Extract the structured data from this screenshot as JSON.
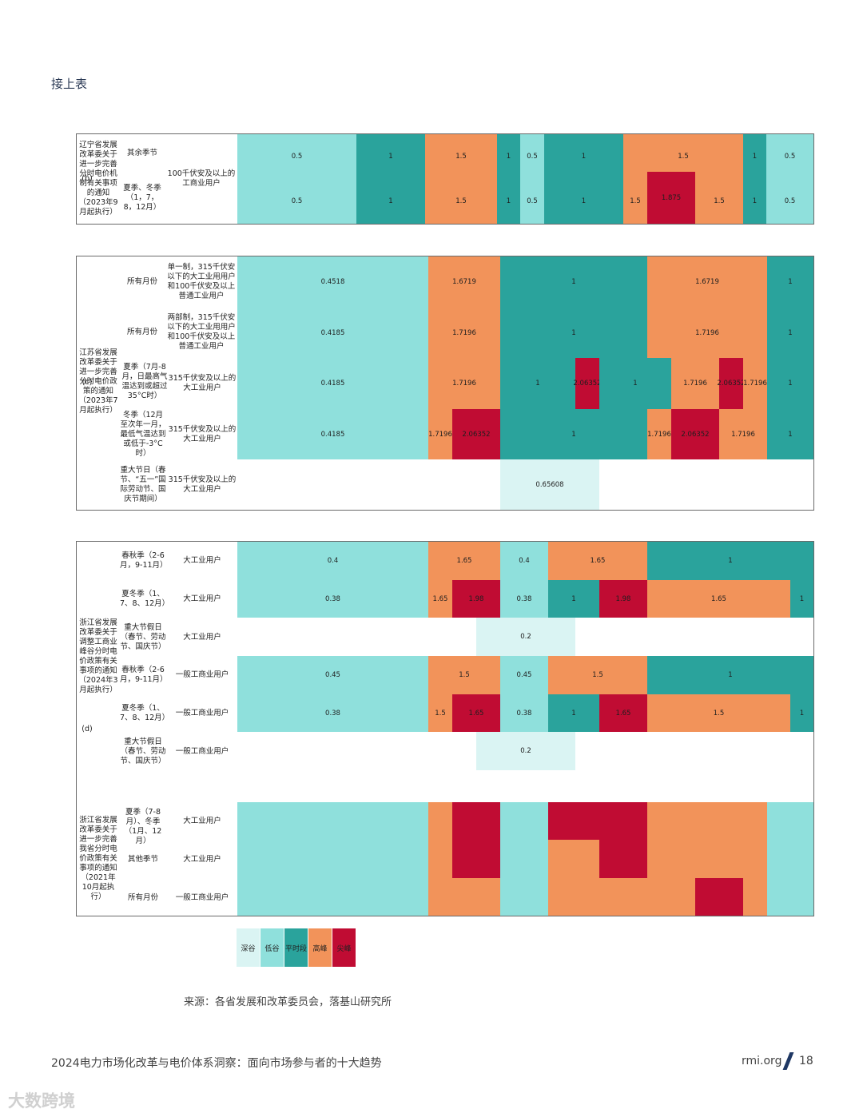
{
  "heading": "接上表",
  "colors": {
    "深谷": "#daf4f3",
    "低谷": "#8fe0dc",
    "平时段": "#2aa39c",
    "高峰": "#f2935a",
    "尖峰": "#c00c33"
  },
  "panel_b": {
    "tag": "(b)",
    "policy": "辽宁省发展改革委关于进一步完善分时电价机制有关事项的通知（2023年9月起执行）",
    "row1_season": "其余季节",
    "row2_season": "夏季、冬季（1，7，8，12月）",
    "user": "100千伏安及以上的工商业用户",
    "row1_values": [
      "0.5",
      "1",
      "1.5",
      "1",
      "0.5",
      "1",
      "1.5",
      "1",
      "0.5"
    ],
    "row2_values": [
      "0.5",
      "1",
      "1.5",
      "1",
      "0.5",
      "1",
      "1.5",
      "1.875",
      "1.5",
      "1",
      "0.5"
    ]
  },
  "panel_c": {
    "tag": "(c)",
    "policy": "江苏省发展改革委关于进一步完善分时电价政策的通知（2023年7月起执行）",
    "rows": [
      {
        "season": "所有月份",
        "user": "单一制，315千伏安以下的大工业用用户和100千伏安及以上普通工业用户",
        "values": [
          "0.4518",
          "1.6719",
          "1",
          "1.6719",
          "1"
        ]
      },
      {
        "season": "所有月份",
        "user": "两部制，315千伏安以下的大工业用用户和100千伏安及以上普通工业用户",
        "values": [
          "0.4185",
          "1.7196",
          "1",
          "1.7196",
          "1"
        ]
      },
      {
        "season": "夏季（7月-8月，日最高气温达到或超过35°C时）",
        "user": "315千伏安及以上的大工业用户",
        "values": [
          "0.4185",
          "1.7196",
          "1",
          "2.06352",
          "1",
          "1.7196",
          "2.06352",
          "1.7196",
          "1"
        ]
      },
      {
        "season": "冬季（12月至次年一月，最低气温达到或低于-3°C时）",
        "user": "315千伏安及以上的大工业用户",
        "values": [
          "0.4185",
          "1.7196",
          "2.06352",
          "1",
          "1.7196",
          "2.06352",
          "1.7196",
          "1"
        ]
      },
      {
        "season": "重大节日（春节、“五一”国际劳动节、国庆节期间）",
        "user": "315千伏安及以上的大工业用户",
        "values": [
          "0.65608"
        ]
      }
    ]
  },
  "panel_d": {
    "tag": "(d)",
    "policy1": "浙江省发展改革委关于调整工商业峰谷分时电价政策有关事项的通知（2024年3月起执行）",
    "policy2": "浙江省发展改革委关于进一步完善我省分时电价政策有关事项的通知（2021年10月起执行）",
    "rows": [
      {
        "season": "春秋季（2-6月，9-11月）",
        "user": "大工业用户",
        "values": [
          "0.4",
          "1.65",
          "0.4",
          "1.65",
          "1"
        ]
      },
      {
        "season": "夏冬季（1、7、8、12月）",
        "user": "大工业用户",
        "values": [
          "0.38",
          "1.65",
          "1.98",
          "0.38",
          "1",
          "1.98",
          "1.65",
          "1"
        ]
      },
      {
        "season": "重大节假日（春节、劳动节、国庆节）",
        "user": "大工业用户",
        "values": [
          "0.2"
        ]
      },
      {
        "season": "春秋季（2-6月，9-11月）",
        "user": "一般工商业用户",
        "values": [
          "0.45",
          "1.5",
          "0.45",
          "1.5",
          "1"
        ]
      },
      {
        "season": "夏冬季（1、7、8、12月）",
        "user": "一般工商业用户",
        "values": [
          "0.38",
          "1.5",
          "1.65",
          "0.38",
          "1",
          "1.65",
          "1.5",
          "1"
        ]
      },
      {
        "season": "重大节假日（春节、劳动节、国庆节）",
        "user": "一般工商业用户",
        "values": [
          "0.2"
        ]
      },
      {
        "season": "夏季（7-8月）、冬季（1月、12月）",
        "user": "大工业用户"
      },
      {
        "season": "其他季节",
        "user": "大工业用户"
      },
      {
        "season": "所有月份",
        "user": "一般工商业用户"
      }
    ]
  },
  "legend": [
    "深谷",
    "低谷",
    "平时段",
    "高峰",
    "尖峰"
  ],
  "source": "来源：各省发展和改革委员会，落基山研究所",
  "footer_title": "2024电力市场化改革与电价体系洞察：面向市场参与者的十大趋势",
  "footer_site": "rmi.org",
  "footer_page": "18",
  "watermark": "大数跨境"
}
